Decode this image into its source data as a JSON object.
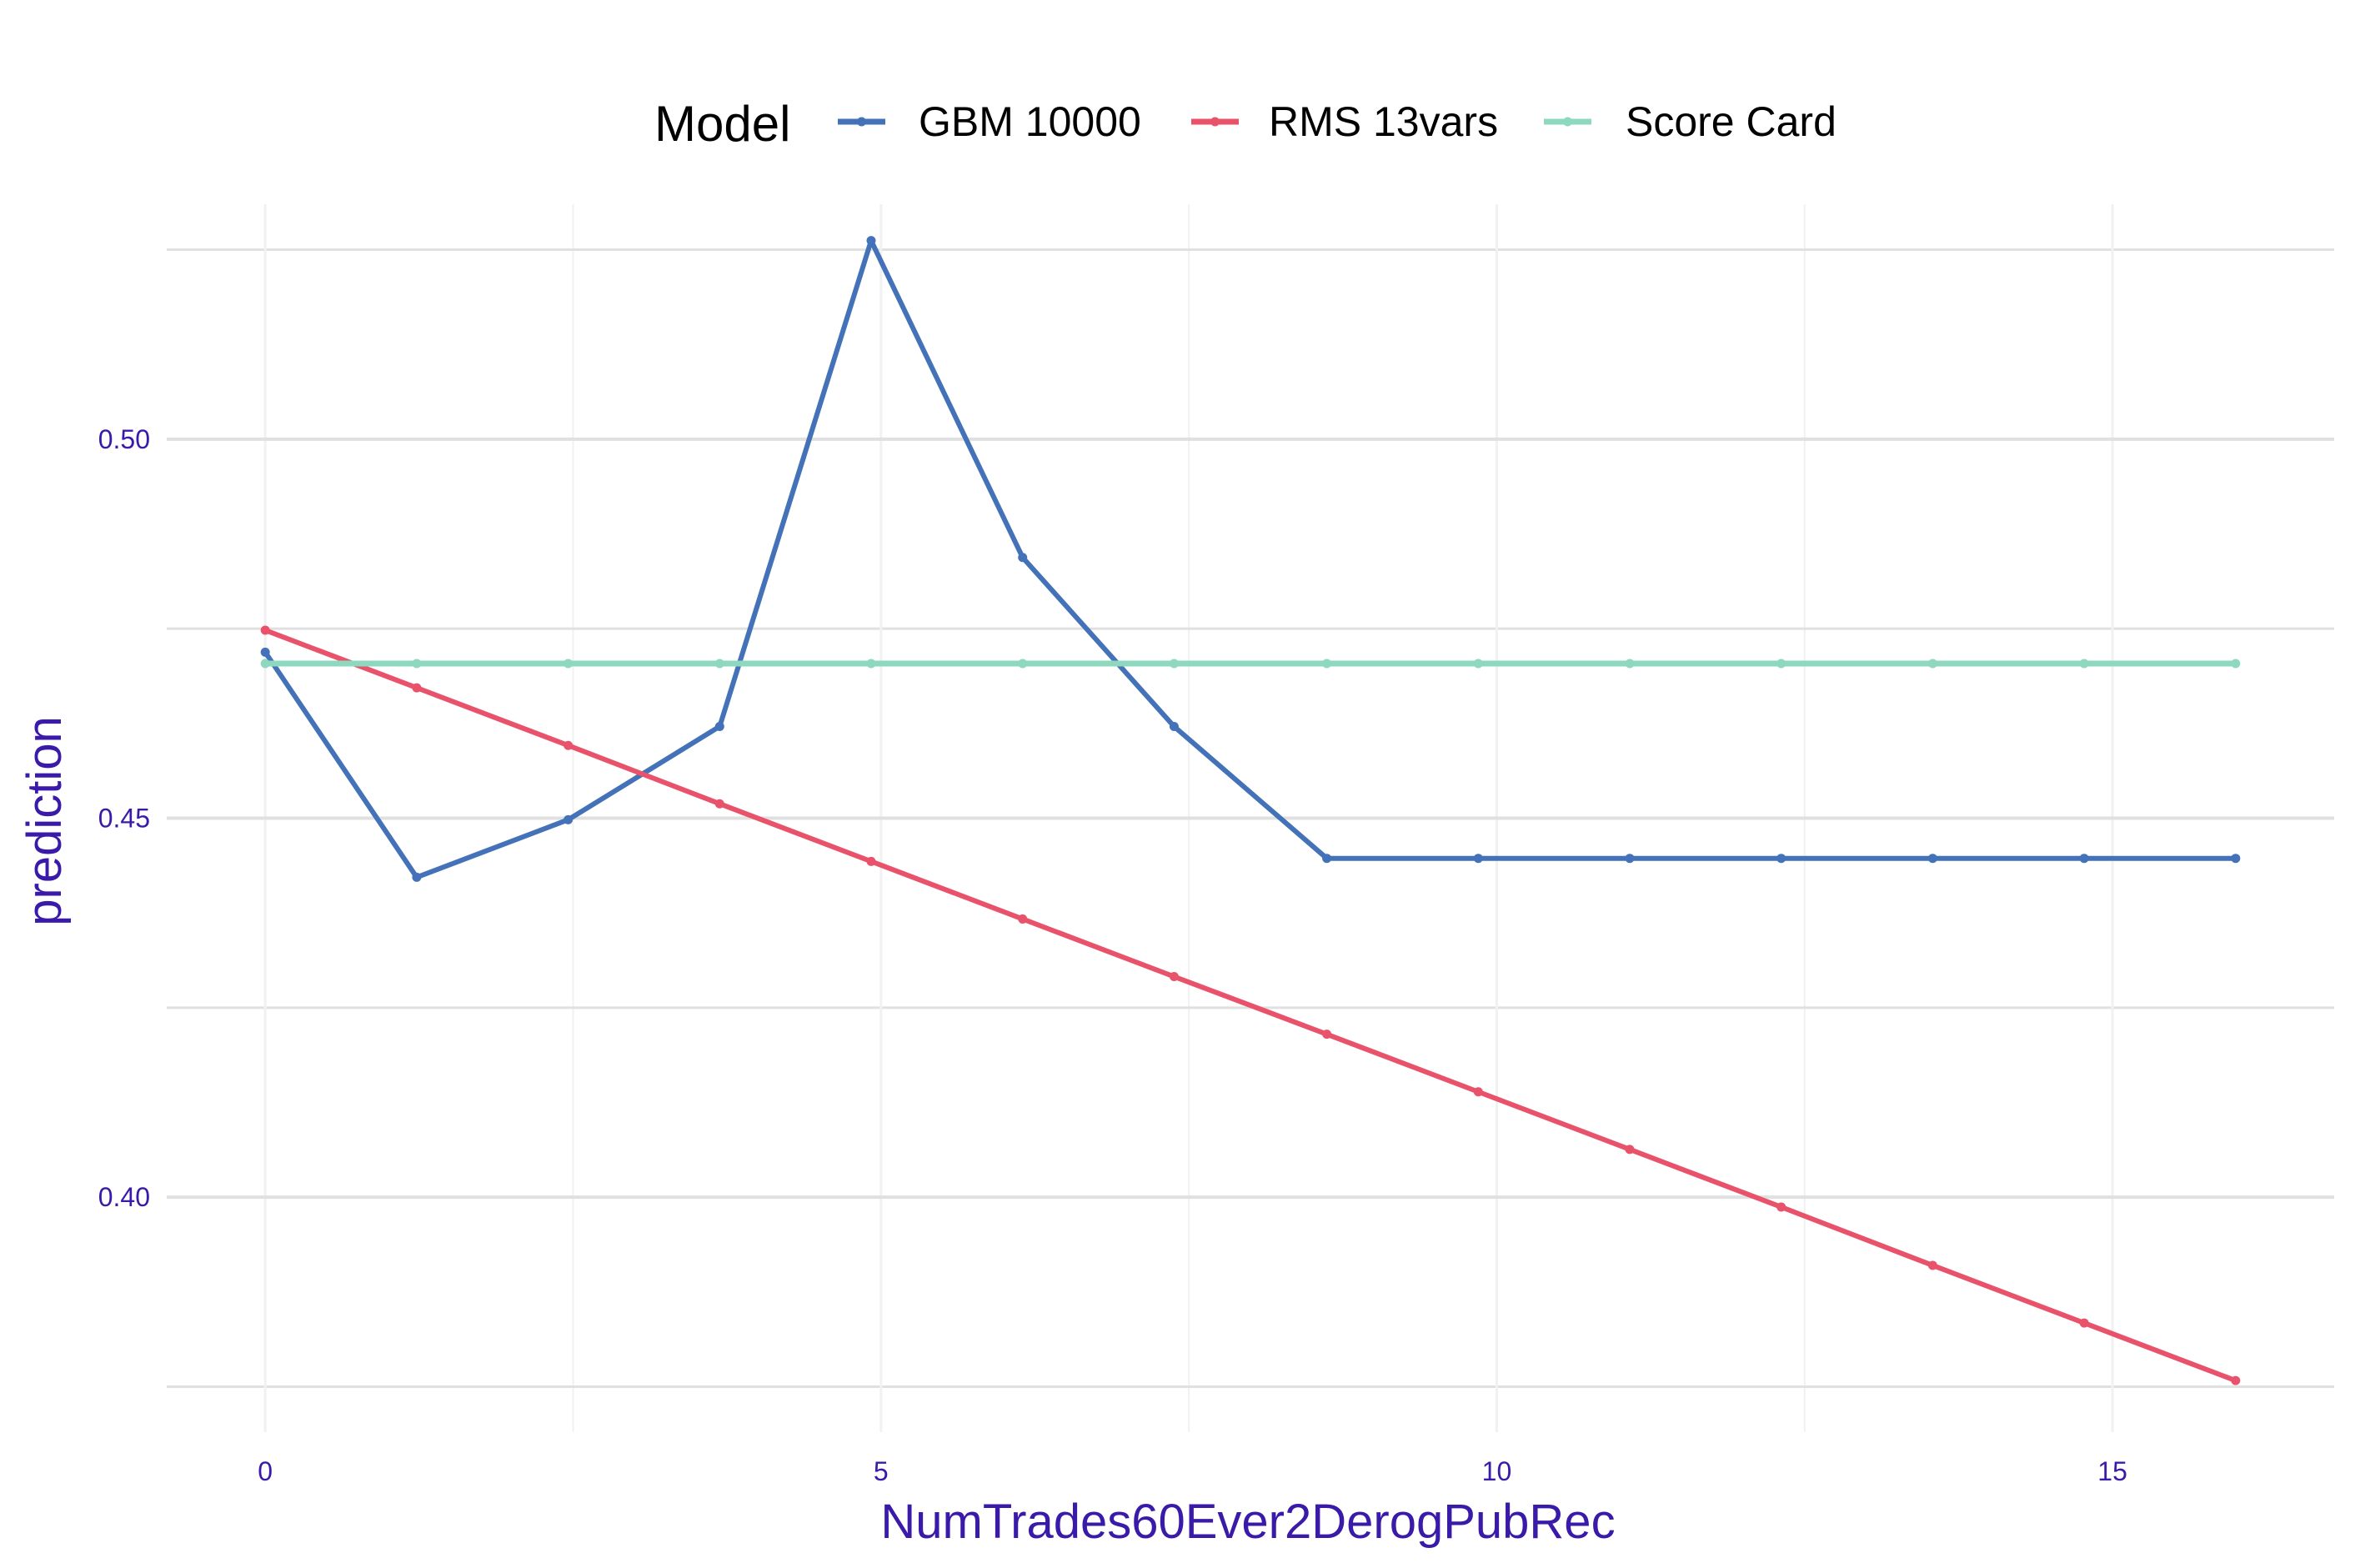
{
  "chart_data": {
    "type": "line",
    "title": "",
    "xlabel": "NumTrades60Ever2DerogPubRec",
    "ylabel": "prediction",
    "legend": {
      "title": "Model",
      "position": "top"
    },
    "grid": true,
    "xlim": [
      -0.8,
      16.8
    ],
    "ylim": [
      0.369,
      0.531
    ],
    "x_ticks": [
      0,
      5,
      10,
      15
    ],
    "x_tick_labels": [
      "0",
      "5",
      "10",
      "15"
    ],
    "y_ticks": [
      0.4,
      0.45,
      0.5
    ],
    "y_tick_labels": [
      "0.40",
      "0.45",
      "0.50"
    ],
    "x": [
      0,
      1.23,
      2.46,
      3.69,
      4.92,
      6.15,
      7.38,
      8.62,
      9.85,
      11.08,
      12.31,
      13.54,
      14.77,
      16.0
    ],
    "series": [
      {
        "name": "GBM 10000",
        "color": "#4472b8",
        "values": [
          0.4719,
          0.4422,
          0.4498,
          0.4621,
          0.5262,
          0.4844,
          0.4621,
          0.4447,
          0.4447,
          0.4447,
          0.4447,
          0.4447,
          0.4447,
          0.4447
        ]
      },
      {
        "name": "RMS 13vars",
        "color": "#e8536b",
        "values": [
          0.4748,
          0.4672,
          0.4596,
          0.4519,
          0.4443,
          0.4367,
          0.4291,
          0.4215,
          0.4139,
          0.4063,
          0.3987,
          0.391,
          0.3834,
          0.3758
        ]
      },
      {
        "name": "Score Card",
        "color": "#8dd8bf",
        "values": [
          0.4704,
          0.4704,
          0.4704,
          0.4704,
          0.4704,
          0.4704,
          0.4704,
          0.4704,
          0.4704,
          0.4704,
          0.4704,
          0.4704,
          0.4704,
          0.4704
        ]
      }
    ],
    "colors": {
      "tick_text": "#3a1aa8",
      "axis_title": "#3a1aa8",
      "grid_major": "#e0e0e0",
      "grid_minor": "#f1f1f1"
    }
  }
}
